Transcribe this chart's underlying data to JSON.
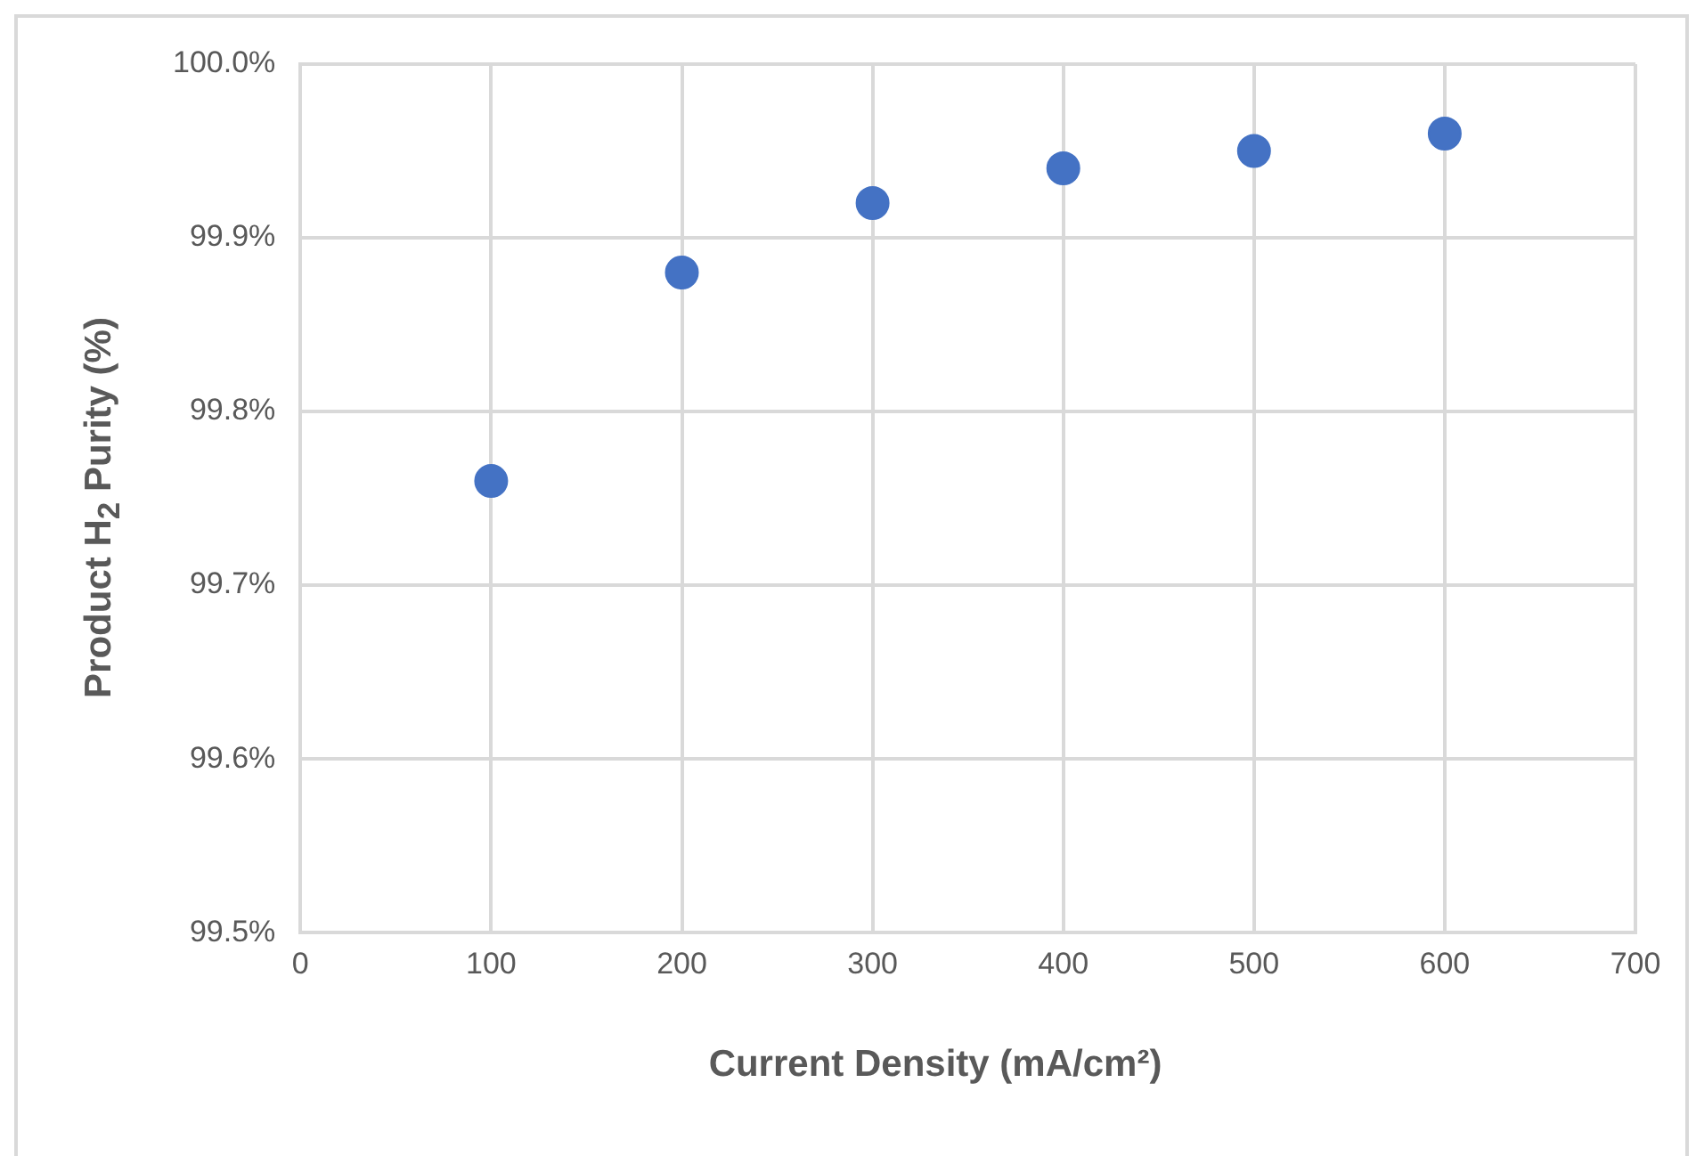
{
  "chart_data": {
    "type": "scatter",
    "xlabel": "Current Density (mA/cm²)",
    "ylabel": "Product H$_{2}$ Purity (%)",
    "x": [
      100,
      200,
      300,
      400,
      500,
      600
    ],
    "series": [
      {
        "color": "#4472c4",
        "values": [
          99.76,
          99.88,
          99.92,
          99.94,
          99.95,
          99.96
        ]
      }
    ],
    "xlim": [
      0,
      700
    ],
    "xticks": [
      0,
      100,
      200,
      300,
      400,
      500,
      600,
      700
    ],
    "ylim": [
      99.5,
      100
    ],
    "yticks": [
      {
        "value": 99.5,
        "label": "99.5%"
      },
      {
        "value": 99.6,
        "label": "99.6%"
      },
      {
        "value": 99.7,
        "label": "99.7%"
      },
      {
        "value": 99.8,
        "label": "99.8%"
      },
      {
        "value": 99.9,
        "label": "99.9%"
      },
      {
        "value": 100,
        "label": "100.0%"
      }
    ],
    "grid": true,
    "marker": "circle"
  }
}
